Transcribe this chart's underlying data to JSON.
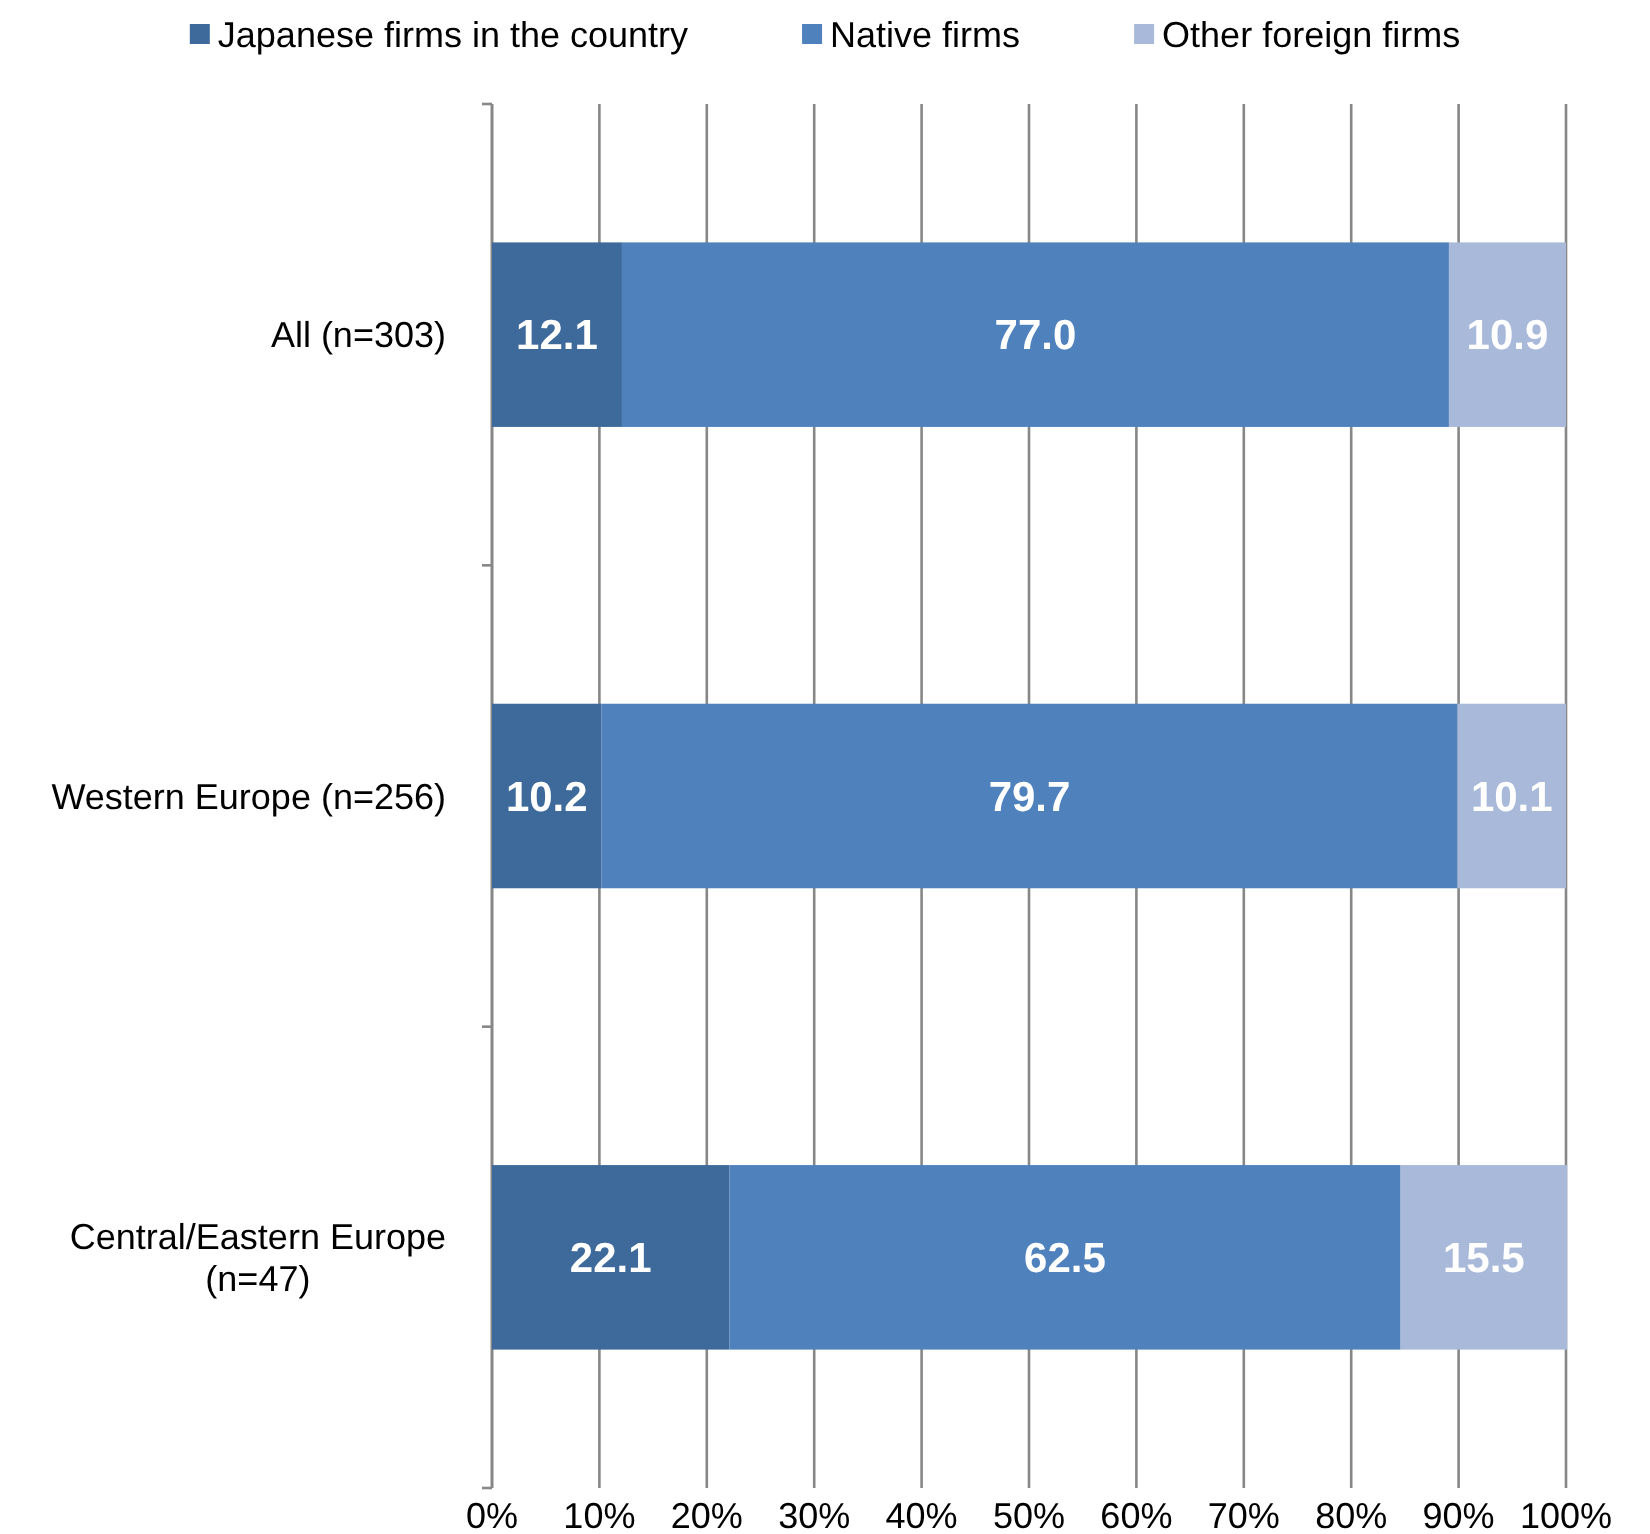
{
  "chart_data": {
    "type": "bar",
    "orientation": "horizontal",
    "stacked": true,
    "categories": [
      "All (n=303)",
      "Western Europe (n=256)",
      "Central/Eastern Europe (n=47)"
    ],
    "series": [
      {
        "name": "Japanese firms in the country",
        "color": "#3e6a9b",
        "values": [
          12.1,
          10.2,
          22.1
        ],
        "value_labels": [
          "12.1",
          "10.2",
          "22.1"
        ]
      },
      {
        "name": "Native firms",
        "color": "#4f81bd",
        "values": [
          77.0,
          79.7,
          62.5
        ],
        "value_labels": [
          "77.0",
          "79.7",
          "62.5"
        ]
      },
      {
        "name": "Other foreign firms",
        "color": "#a9b9da",
        "values": [
          10.9,
          10.1,
          15.5
        ],
        "value_labels": [
          "10.9",
          "10.1",
          "15.5"
        ]
      }
    ],
    "xlim": [
      0,
      100
    ],
    "xticks": [
      {
        "value": 0,
        "label": "0%"
      },
      {
        "value": 10,
        "label": "10%"
      },
      {
        "value": 20,
        "label": "20%"
      },
      {
        "value": 30,
        "label": "30%"
      },
      {
        "value": 40,
        "label": "40%"
      },
      {
        "value": 50,
        "label": "50%"
      },
      {
        "value": 60,
        "label": "60%"
      },
      {
        "value": 70,
        "label": "70%"
      },
      {
        "value": 80,
        "label": "80%"
      },
      {
        "value": 90,
        "label": "90%"
      },
      {
        "value": 100,
        "label": "100%"
      }
    ],
    "grid": "x",
    "legend": "top"
  }
}
